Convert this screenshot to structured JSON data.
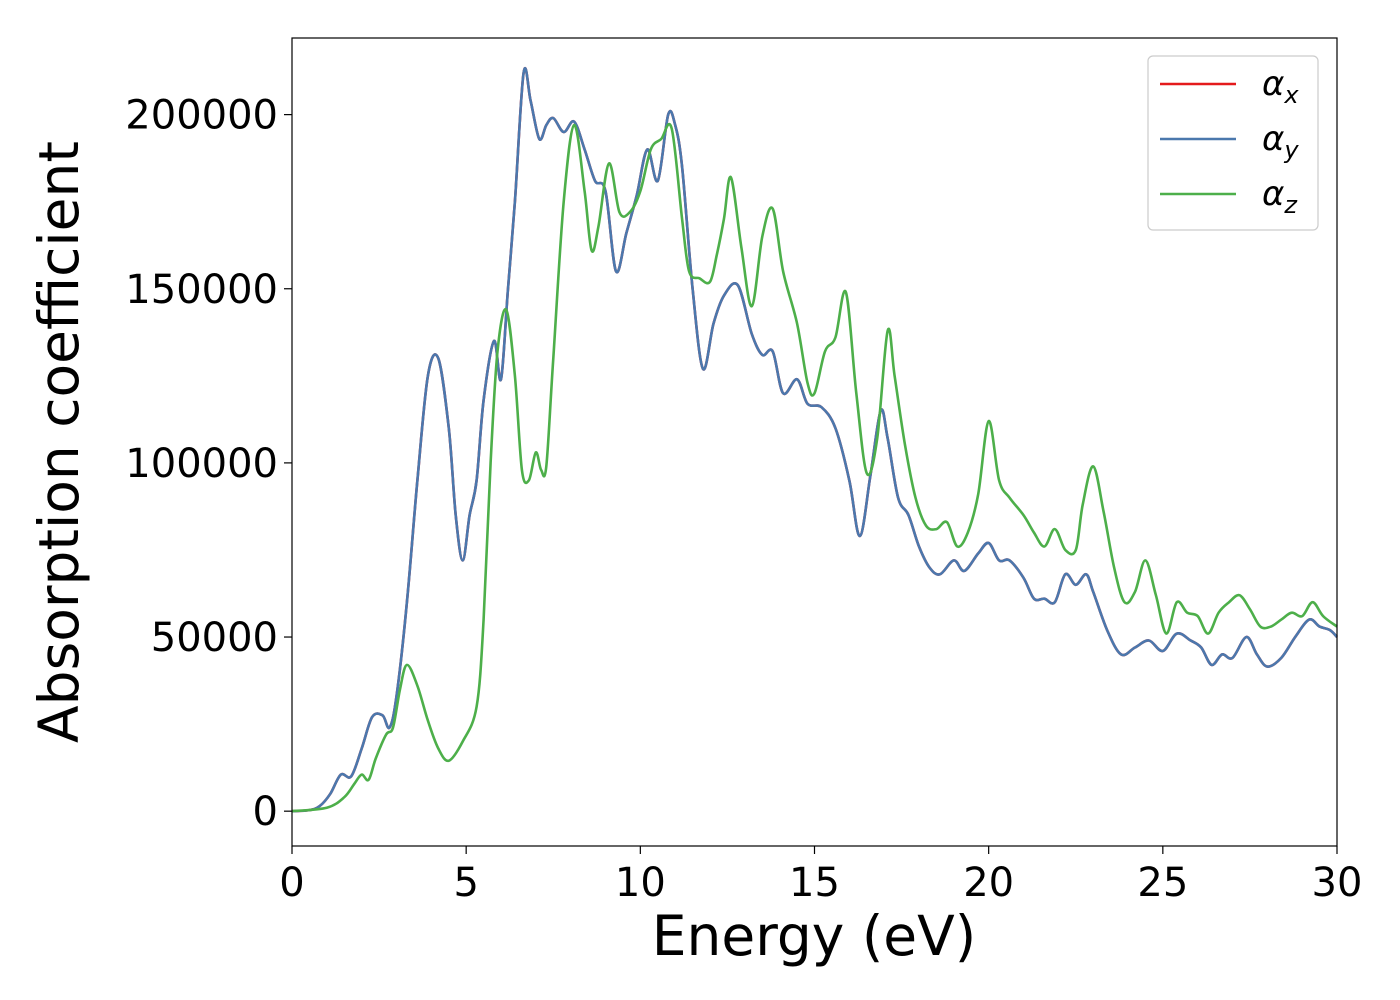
{
  "chart_data": {
    "type": "line",
    "title": "",
    "xlabel": "Energy (eV)",
    "ylabel": "Absorption coefficient",
    "xlim": [
      0,
      30
    ],
    "ylim": [
      -10000,
      222000
    ],
    "xticks": [
      0,
      5,
      10,
      15,
      20,
      25,
      30
    ],
    "yticks": [
      0,
      50000,
      100000,
      150000,
      200000
    ],
    "grid": false,
    "legend": {
      "position": "top-right"
    },
    "series": [
      {
        "name": "α_x",
        "legend_symbol": "α",
        "legend_subscript": "x",
        "color": "#e41a1c",
        "x": [
          0,
          0.5,
          0.8,
          1.1,
          1.4,
          1.7,
          2.0,
          2.3,
          2.6,
          2.8,
          3.0,
          3.3,
          3.6,
          3.9,
          4.2,
          4.5,
          4.7,
          4.9,
          5.1,
          5.3,
          5.5,
          5.8,
          6.0,
          6.2,
          6.4,
          6.65,
          6.85,
          7.1,
          7.3,
          7.5,
          7.8,
          8.1,
          8.4,
          8.7,
          9.0,
          9.3,
          9.6,
          9.9,
          10.2,
          10.5,
          10.8,
          11.0,
          11.2,
          11.5,
          11.8,
          12.1,
          12.4,
          12.8,
          13.2,
          13.5,
          13.8,
          14.1,
          14.5,
          14.8,
          15.2,
          15.6,
          16.0,
          16.3,
          16.6,
          16.9,
          17.1,
          17.4,
          17.7,
          18.0,
          18.3,
          18.6,
          19.0,
          19.3,
          19.7,
          20.0,
          20.3,
          20.6,
          21.0,
          21.3,
          21.6,
          21.9,
          22.2,
          22.5,
          22.8,
          23.0,
          23.4,
          23.8,
          24.2,
          24.6,
          25.0,
          25.4,
          25.8,
          26.1,
          26.4,
          26.7,
          27.0,
          27.4,
          27.7,
          28.0,
          28.4,
          28.8,
          29.2,
          29.5,
          29.8,
          30.0
        ],
        "values": [
          0,
          300,
          1500,
          5000,
          10500,
          10000,
          18000,
          27000,
          27500,
          24000,
          33000,
          60000,
          95000,
          125000,
          130000,
          110000,
          85000,
          72000,
          85000,
          95000,
          118000,
          135000,
          124000,
          150000,
          175000,
          212000,
          204000,
          193000,
          197000,
          199000,
          195000,
          198000,
          190000,
          181000,
          178000,
          155000,
          166000,
          177000,
          190000,
          181000,
          200000,
          197000,
          185000,
          150000,
          127000,
          140000,
          148000,
          151000,
          137000,
          131000,
          132000,
          120000,
          124000,
          117000,
          116000,
          110000,
          95000,
          79000,
          96000,
          115000,
          107000,
          90000,
          85000,
          76000,
          70000,
          68000,
          72000,
          69000,
          74000,
          77000,
          72000,
          72000,
          67000,
          61000,
          61000,
          60000,
          68000,
          65000,
          68000,
          63000,
          52000,
          45000,
          47000,
          49000,
          46000,
          51000,
          49000,
          47000,
          42000,
          45000,
          44000,
          50000,
          45000,
          41500,
          44000,
          50000,
          55000,
          53000,
          52000,
          50000
        ]
      },
      {
        "name": "α_y",
        "legend_symbol": "α",
        "legend_subscript": "y",
        "color": "#4b78ad",
        "x": [
          0,
          0.5,
          0.8,
          1.1,
          1.4,
          1.7,
          2.0,
          2.3,
          2.6,
          2.8,
          3.0,
          3.3,
          3.6,
          3.9,
          4.2,
          4.5,
          4.7,
          4.9,
          5.1,
          5.3,
          5.5,
          5.8,
          6.0,
          6.2,
          6.4,
          6.65,
          6.85,
          7.1,
          7.3,
          7.5,
          7.8,
          8.1,
          8.4,
          8.7,
          9.0,
          9.3,
          9.6,
          9.9,
          10.2,
          10.5,
          10.8,
          11.0,
          11.2,
          11.5,
          11.8,
          12.1,
          12.4,
          12.8,
          13.2,
          13.5,
          13.8,
          14.1,
          14.5,
          14.8,
          15.2,
          15.6,
          16.0,
          16.3,
          16.6,
          16.9,
          17.1,
          17.4,
          17.7,
          18.0,
          18.3,
          18.6,
          19.0,
          19.3,
          19.7,
          20.0,
          20.3,
          20.6,
          21.0,
          21.3,
          21.6,
          21.9,
          22.2,
          22.5,
          22.8,
          23.0,
          23.4,
          23.8,
          24.2,
          24.6,
          25.0,
          25.4,
          25.8,
          26.1,
          26.4,
          26.7,
          27.0,
          27.4,
          27.7,
          28.0,
          28.4,
          28.8,
          29.2,
          29.5,
          29.8,
          30.0
        ],
        "values": [
          0,
          300,
          1500,
          5000,
          10500,
          10000,
          18000,
          27000,
          27500,
          24000,
          33000,
          60000,
          95000,
          125000,
          130000,
          110000,
          85000,
          72000,
          85000,
          95000,
          118000,
          135000,
          124000,
          150000,
          175000,
          212000,
          204000,
          193000,
          197000,
          199000,
          195000,
          198000,
          190000,
          181000,
          178000,
          155000,
          166000,
          177000,
          190000,
          181000,
          200000,
          197000,
          185000,
          150000,
          127000,
          140000,
          148000,
          151000,
          137000,
          131000,
          132000,
          120000,
          124000,
          117000,
          116000,
          110000,
          95000,
          79000,
          96000,
          115000,
          107000,
          90000,
          85000,
          76000,
          70000,
          68000,
          72000,
          69000,
          74000,
          77000,
          72000,
          72000,
          67000,
          61000,
          61000,
          60000,
          68000,
          65000,
          68000,
          63000,
          52000,
          45000,
          47000,
          49000,
          46000,
          51000,
          49000,
          47000,
          42000,
          45000,
          44000,
          50000,
          45000,
          41500,
          44000,
          50000,
          55000,
          53000,
          52000,
          50000
        ]
      },
      {
        "name": "α_z",
        "legend_symbol": "α",
        "legend_subscript": "z",
        "color": "#4daf4a",
        "x": [
          0,
          1.0,
          1.5,
          1.8,
          2.0,
          2.2,
          2.4,
          2.7,
          2.9,
          3.1,
          3.3,
          3.6,
          3.9,
          4.2,
          4.5,
          4.9,
          5.3,
          5.5,
          5.7,
          5.9,
          6.15,
          6.4,
          6.6,
          6.8,
          7.0,
          7.15,
          7.3,
          7.5,
          7.8,
          8.1,
          8.4,
          8.6,
          8.8,
          9.1,
          9.4,
          9.7,
          10.0,
          10.3,
          10.6,
          10.9,
          11.2,
          11.4,
          11.7,
          12.0,
          12.2,
          12.4,
          12.6,
          12.9,
          13.2,
          13.5,
          13.8,
          14.1,
          14.5,
          14.8,
          15.0,
          15.3,
          15.6,
          15.9,
          16.2,
          16.5,
          16.8,
          17.1,
          17.3,
          17.6,
          17.9,
          18.2,
          18.5,
          18.8,
          19.1,
          19.4,
          19.7,
          20.0,
          20.3,
          20.6,
          21.0,
          21.3,
          21.6,
          21.9,
          22.2,
          22.5,
          22.7,
          23.0,
          23.3,
          23.6,
          23.9,
          24.2,
          24.5,
          24.8,
          25.1,
          25.4,
          25.7,
          26.0,
          26.3,
          26.6,
          26.9,
          27.2,
          27.5,
          27.8,
          28.1,
          28.4,
          28.7,
          29.0,
          29.3,
          29.6,
          30.0
        ],
        "values": [
          0,
          1000,
          4000,
          8000,
          10500,
          9000,
          15000,
          22000,
          24000,
          35000,
          42000,
          36000,
          26000,
          18000,
          14500,
          20000,
          30000,
          55000,
          100000,
          132000,
          144000,
          125000,
          98000,
          95000,
          103000,
          98000,
          99000,
          130000,
          175000,
          197000,
          178000,
          161000,
          168000,
          186000,
          172000,
          172000,
          178000,
          190000,
          193000,
          196000,
          170000,
          155000,
          153000,
          152000,
          160000,
          170000,
          182000,
          162000,
          145000,
          165000,
          173000,
          155000,
          140000,
          123000,
          120000,
          132000,
          136000,
          149000,
          120000,
          97000,
          107000,
          138000,
          125000,
          105000,
          90000,
          82000,
          81000,
          83000,
          76000,
          80000,
          91000,
          112000,
          95000,
          90000,
          85000,
          80000,
          76000,
          81000,
          75000,
          75000,
          88000,
          99000,
          86000,
          70000,
          60000,
          63000,
          72000,
          62000,
          51000,
          60000,
          57000,
          56000,
          51000,
          57000,
          60000,
          62000,
          58000,
          53000,
          53000,
          55000,
          57000,
          56000,
          60000,
          56000,
          53000
        ]
      }
    ]
  }
}
